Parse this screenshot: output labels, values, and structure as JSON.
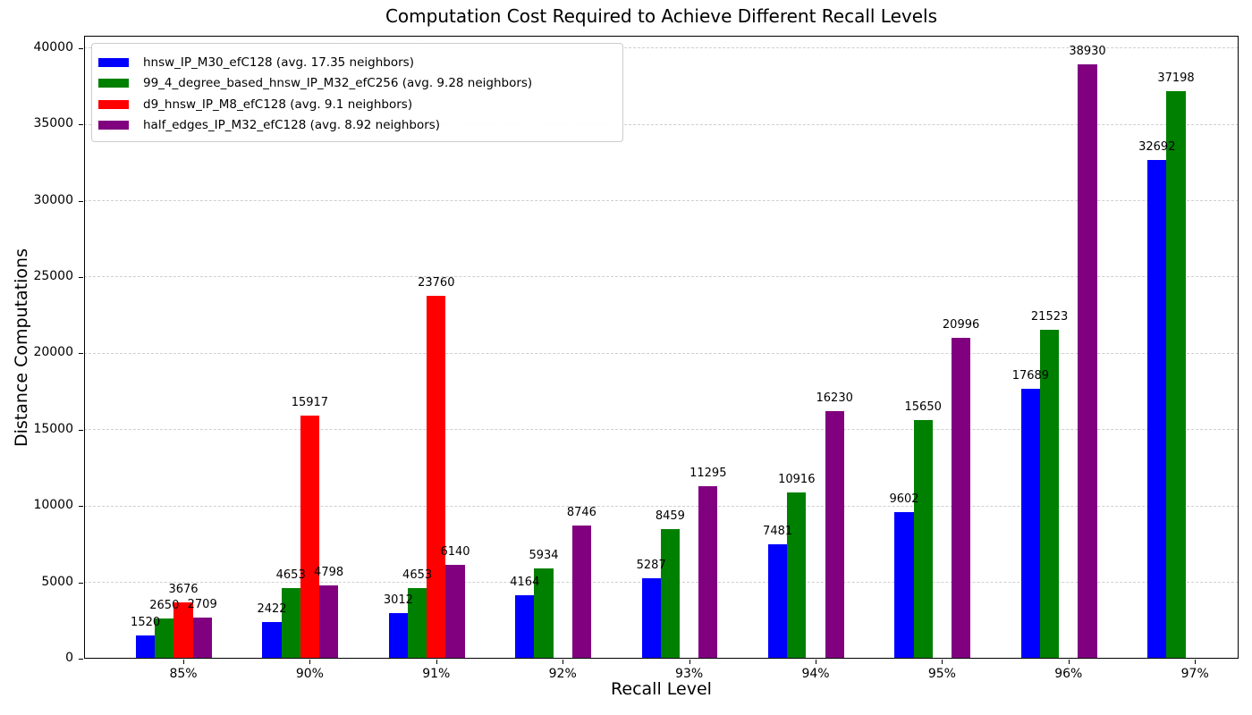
{
  "chart_data": {
    "type": "bar",
    "title": "Computation Cost Required to Achieve Different Recall Levels",
    "xlabel": "Recall Level",
    "ylabel": "Distance Computations",
    "categories": [
      "85%",
      "90%",
      "91%",
      "92%",
      "93%",
      "94%",
      "95%",
      "96%",
      "97%"
    ],
    "series": [
      {
        "name": "hnsw_IP_M30_efC128 (avg. 17.35 neighbors)",
        "color": "#0000ff",
        "values": [
          1520,
          2422,
          3012,
          4164,
          5287,
          7481,
          9602,
          17689,
          32692
        ]
      },
      {
        "name": "99_4_degree_based_hnsw_IP_M32_efC256 (avg. 9.28 neighbors)",
        "color": "#008000",
        "values": [
          2650,
          4653,
          4653,
          5934,
          8459,
          10916,
          15650,
          21523,
          37198
        ]
      },
      {
        "name": "d9_hnsw_IP_M8_efC128 (avg. 9.1 neighbors)",
        "color": "#ff0000",
        "values": [
          3676,
          15917,
          23760,
          null,
          null,
          null,
          null,
          null,
          null
        ]
      },
      {
        "name": "half_edges_IP_M32_efC128 (avg. 8.92 neighbors)",
        "color": "#800080",
        "values": [
          2709,
          4798,
          6140,
          8746,
          11295,
          16230,
          20996,
          38930,
          null
        ]
      }
    ],
    "yticks": [
      0,
      5000,
      10000,
      15000,
      20000,
      25000,
      30000,
      35000,
      40000
    ],
    "ylim": [
      0,
      40800
    ],
    "grid": "horizontal-dashed",
    "gridline_color": "#cfcfcf",
    "legend_position": "upper-left",
    "bar_value_labels": true
  }
}
